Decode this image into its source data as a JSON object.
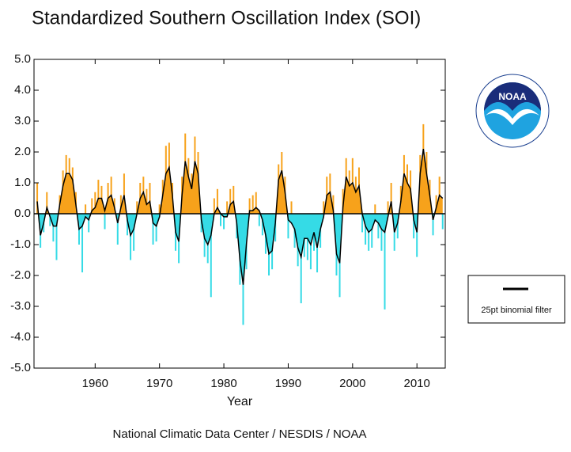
{
  "chart_data": {
    "type": "line",
    "title": "Standardized Southern Oscillation Index (SOI)",
    "x_label": "Year",
    "footer": "National Climatic Data Center / NESDIS / NOAA",
    "logo": "NOAA",
    "xlim": [
      1950.5,
      2014.4
    ],
    "ylim": [
      -5,
      5
    ],
    "xticks": [
      1960,
      1970,
      1980,
      1990,
      2000,
      2010
    ],
    "yticks": [
      {
        "value": -5,
        "label": "-5.0"
      },
      {
        "value": -4,
        "label": "-4.0"
      },
      {
        "value": -3,
        "label": "-3.0"
      },
      {
        "value": -2,
        "label": "-2.0"
      },
      {
        "value": -1,
        "label": "-1.0"
      },
      {
        "value": 0,
        "label": "0.0"
      },
      {
        "value": 1,
        "label": "1.0"
      },
      {
        "value": 2,
        "label": "2.0"
      },
      {
        "value": 3,
        "label": "3.0"
      },
      {
        "value": 4,
        "label": "4.0"
      },
      {
        "value": 5,
        "label": "5.0"
      }
    ],
    "legend": "right",
    "positive_color": "#f7a21b",
    "negative_color": "#35dbe6",
    "x": [
      1951.0,
      1951.5,
      1952.0,
      1952.5,
      1953.0,
      1953.5,
      1954.0,
      1954.5,
      1955.0,
      1955.5,
      1956.0,
      1956.5,
      1957.0,
      1957.5,
      1958.0,
      1958.5,
      1959.0,
      1959.5,
      1960.0,
      1960.5,
      1961.0,
      1961.5,
      1962.0,
      1962.5,
      1963.0,
      1963.5,
      1964.0,
      1964.5,
      1965.0,
      1965.5,
      1966.0,
      1966.5,
      1967.0,
      1967.5,
      1968.0,
      1968.5,
      1969.0,
      1969.5,
      1970.0,
      1970.5,
      1971.0,
      1971.5,
      1972.0,
      1972.5,
      1973.0,
      1973.5,
      1974.0,
      1974.5,
      1975.0,
      1975.5,
      1976.0,
      1976.5,
      1977.0,
      1977.5,
      1978.0,
      1978.5,
      1979.0,
      1979.5,
      1980.0,
      1980.5,
      1981.0,
      1981.5,
      1982.0,
      1982.5,
      1983.0,
      1983.5,
      1984.0,
      1984.5,
      1985.0,
      1985.5,
      1986.0,
      1986.5,
      1987.0,
      1987.5,
      1988.0,
      1988.5,
      1989.0,
      1989.5,
      1990.0,
      1990.5,
      1991.0,
      1991.5,
      1992.0,
      1992.5,
      1993.0,
      1993.5,
      1994.0,
      1994.5,
      1995.0,
      1995.5,
      1996.0,
      1996.5,
      1997.0,
      1997.5,
      1998.0,
      1998.5,
      1999.0,
      1999.5,
      2000.0,
      2000.5,
      2001.0,
      2001.5,
      2002.0,
      2002.5,
      2003.0,
      2003.5,
      2004.0,
      2004.5,
      2005.0,
      2005.5,
      2006.0,
      2006.5,
      2007.0,
      2007.5,
      2008.0,
      2008.5,
      2009.0,
      2009.5,
      2010.0,
      2010.5,
      2011.0,
      2011.5,
      2012.0,
      2012.5,
      2013.0,
      2013.5,
      2014.0
    ],
    "bars": [
      1.0,
      -1.1,
      -0.6,
      0.7,
      -0.4,
      -0.9,
      -1.5,
      0.6,
      1.4,
      1.9,
      1.8,
      1.5,
      0.7,
      -1.0,
      -1.9,
      0.3,
      -0.6,
      0.5,
      0.7,
      1.1,
      0.9,
      -0.5,
      1.0,
      1.2,
      0.5,
      -1.0,
      0.6,
      1.3,
      -0.7,
      -1.5,
      -1.2,
      0.4,
      1.0,
      1.2,
      0.8,
      1.0,
      -1.0,
      -0.9,
      0.3,
      1.1,
      2.2,
      2.3,
      1.0,
      -1.2,
      -1.6,
      1.2,
      2.6,
      1.8,
      1.3,
      2.5,
      2.0,
      -0.6,
      -1.4,
      -1.6,
      -2.7,
      0.5,
      0.8,
      -0.4,
      -0.5,
      0.4,
      0.8,
      0.9,
      -0.8,
      -2.3,
      -3.6,
      -1.8,
      0.5,
      0.6,
      0.7,
      -0.4,
      -0.7,
      -1.3,
      -2.0,
      -1.8,
      -0.9,
      1.6,
      2.0,
      1.2,
      -0.8,
      0.4,
      -1.1,
      -1.7,
      -2.9,
      -1.4,
      -1.5,
      -1.8,
      -1.2,
      -1.9,
      -1.1,
      0.4,
      1.2,
      1.3,
      0.6,
      -2.0,
      -2.7,
      0.8,
      1.8,
      1.4,
      1.8,
      1.2,
      1.5,
      -0.6,
      -1.0,
      -1.2,
      -1.1,
      0.3,
      -0.8,
      -1.2,
      -3.1,
      0.4,
      1.0,
      -1.2,
      -0.8,
      0.9,
      1.9,
      1.6,
      1.4,
      -0.8,
      -1.4,
      1.9,
      2.9,
      2.0,
      1.1,
      -0.7,
      0.6,
      1.2,
      -0.5
    ],
    "series": [
      {
        "name": "25pt binomial filter",
        "color": "#000000",
        "values": [
          0.4,
          -0.7,
          -0.3,
          0.2,
          -0.1,
          -0.4,
          -0.4,
          0.3,
          0.9,
          1.3,
          1.3,
          1.1,
          0.3,
          -0.5,
          -0.4,
          -0.1,
          -0.2,
          0.1,
          0.2,
          0.5,
          0.5,
          0.1,
          0.5,
          0.6,
          0.2,
          -0.3,
          0.2,
          0.6,
          -0.2,
          -0.7,
          -0.5,
          0.0,
          0.5,
          0.7,
          0.3,
          0.4,
          -0.3,
          -0.4,
          -0.1,
          0.6,
          1.3,
          1.5,
          0.6,
          -0.6,
          -0.9,
          0.6,
          1.7,
          1.2,
          0.8,
          1.7,
          1.3,
          -0.2,
          -0.8,
          -1.0,
          -0.7,
          0.0,
          0.2,
          0.0,
          -0.1,
          -0.1,
          0.3,
          0.4,
          -0.3,
          -1.5,
          -2.3,
          -1.0,
          0.1,
          0.1,
          0.2,
          0.1,
          -0.2,
          -0.7,
          -1.3,
          -1.2,
          -0.3,
          1.1,
          1.4,
          0.7,
          -0.2,
          -0.3,
          -0.5,
          -1.1,
          -1.4,
          -0.8,
          -0.8,
          -1.0,
          -0.6,
          -1.1,
          -0.5,
          -0.1,
          0.6,
          0.7,
          0.1,
          -1.3,
          -1.6,
          0.2,
          1.2,
          0.9,
          1.0,
          0.7,
          0.9,
          0.0,
          -0.4,
          -0.6,
          -0.5,
          -0.2,
          -0.3,
          -0.5,
          -0.6,
          -0.1,
          0.4,
          -0.6,
          -0.3,
          0.4,
          1.3,
          1.0,
          0.8,
          -0.2,
          -0.6,
          1.3,
          2.1,
          1.3,
          0.6,
          -0.2,
          0.2,
          0.6,
          0.5
        ]
      }
    ]
  }
}
